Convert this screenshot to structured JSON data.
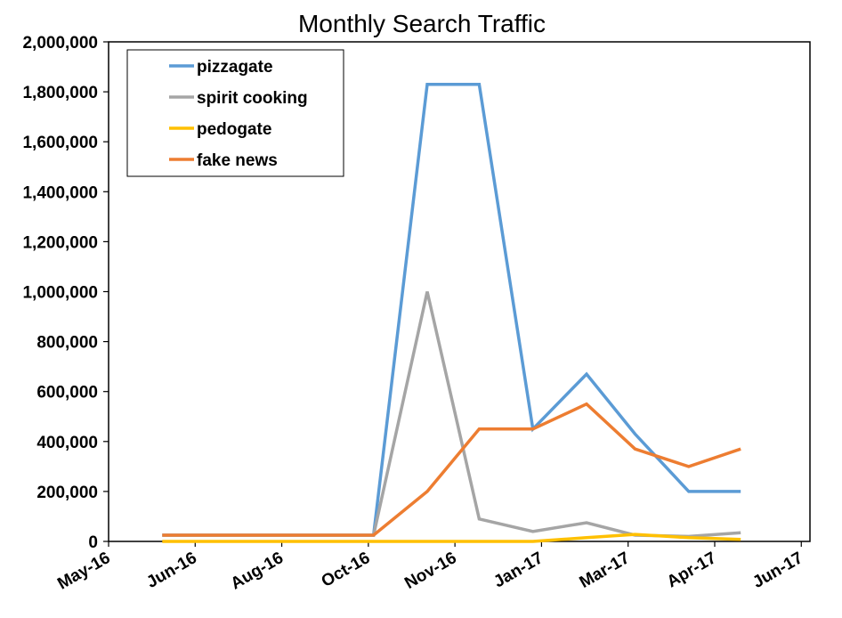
{
  "chart_data": {
    "type": "line",
    "title": "Monthly Search Traffic",
    "xlabel": "",
    "ylabel": "",
    "ylim": [
      0,
      2000000
    ],
    "yticks": [
      "0",
      "200,000",
      "400,000",
      "600,000",
      "800,000",
      "1,000,000",
      "1,200,000",
      "1,400,000",
      "1,600,000",
      "1,800,000",
      "2,000,000"
    ],
    "ytick_values": [
      0,
      200000,
      400000,
      600000,
      800000,
      1000000,
      1200000,
      1400000,
      1600000,
      1800000,
      2000000
    ],
    "xlim": [
      "2016-05-01",
      "2017-06-10"
    ],
    "xticks": [
      {
        "date": "2016-05-01",
        "label": "May-16"
      },
      {
        "date": "2016-06-20",
        "label": "Jun-16"
      },
      {
        "date": "2016-08-09",
        "label": "Aug-16"
      },
      {
        "date": "2016-09-28",
        "label": "Oct-16"
      },
      {
        "date": "2016-11-17",
        "label": "Nov-16"
      },
      {
        "date": "2017-01-06",
        "label": "Jan-17"
      },
      {
        "date": "2017-02-25",
        "label": "Mar-17"
      },
      {
        "date": "2017-04-16",
        "label": "Apr-17"
      },
      {
        "date": "2017-06-05",
        "label": "Jun-17"
      }
    ],
    "x": [
      "2016-06-01",
      "2016-07-01",
      "2016-08-01",
      "2016-09-01",
      "2016-10-01",
      "2016-11-01",
      "2016-12-01",
      "2017-01-01",
      "2017-02-01",
      "2017-03-01",
      "2017-04-01",
      "2017-05-01"
    ],
    "series": [
      {
        "name": "pizzagate",
        "color": "#5b9bd5",
        "values": [
          25000,
          25000,
          25000,
          25000,
          25000,
          1830000,
          1830000,
          450000,
          670000,
          430000,
          200000,
          200000
        ]
      },
      {
        "name": "spirit cooking",
        "color": "#a5a5a5",
        "values": [
          25000,
          25000,
          25000,
          25000,
          25000,
          1000000,
          90000,
          40000,
          75000,
          25000,
          20000,
          35000
        ]
      },
      {
        "name": "pedogate",
        "color": "#ffc000",
        "values": [
          0,
          0,
          0,
          0,
          0,
          0,
          0,
          0,
          15000,
          28000,
          15000,
          8000
        ]
      },
      {
        "name": "fake news",
        "color": "#ed7d31",
        "values": [
          25000,
          25000,
          25000,
          25000,
          25000,
          200000,
          450000,
          450000,
          550000,
          370000,
          300000,
          370000
        ]
      }
    ],
    "legend_position": "top-left",
    "grid": false
  }
}
